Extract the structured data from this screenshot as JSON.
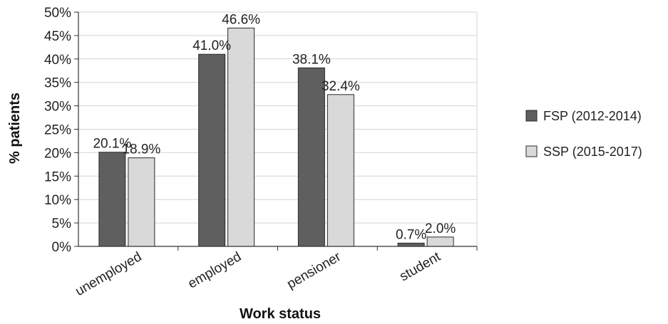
{
  "chart_data": {
    "type": "bar",
    "categories": [
      "unemployed",
      "employed",
      "pensioner",
      "student"
    ],
    "series": [
      {
        "name": "FSP (2012-2014)",
        "values": [
          20.1,
          41.0,
          38.1,
          0.7
        ],
        "labels": [
          "20.1%",
          "41.0%",
          "38.1%",
          "0.7%"
        ],
        "color": "#5f5f5f"
      },
      {
        "name": "SSP (2015-2017)",
        "values": [
          18.9,
          46.6,
          32.4,
          2.0
        ],
        "labels": [
          "18.9%",
          "46.6%",
          "32.4%",
          "2.0%"
        ],
        "color": "#d9d9d9"
      }
    ],
    "title": "",
    "xlabel": "Work status",
    "ylabel": "% patients",
    "ylim": [
      0,
      50
    ],
    "yticks": [
      0,
      5,
      10,
      15,
      20,
      25,
      30,
      35,
      40,
      45,
      50
    ],
    "ytick_labels": [
      "0%",
      "5%",
      "10%",
      "15%",
      "20%",
      "25%",
      "30%",
      "35%",
      "40%",
      "45%",
      "50%"
    ],
    "grid": true,
    "legend": "right"
  }
}
